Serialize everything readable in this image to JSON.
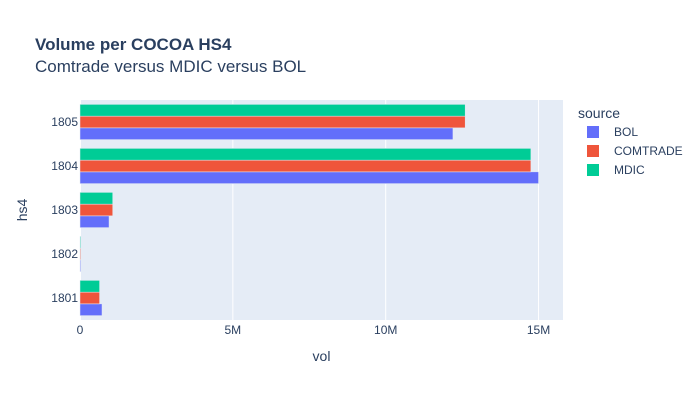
{
  "chart_data": {
    "type": "bar",
    "orientation": "horizontal",
    "barmode": "group",
    "title": "Volume per COCOA HS4",
    "subtitle": "Comtrade versus MDIC versus BOL",
    "xlabel": "vol",
    "ylabel": "hs4",
    "xlim": [
      0,
      15800000
    ],
    "xticks": [
      0,
      5000000,
      10000000,
      15000000
    ],
    "xtick_labels": [
      "0",
      "5M",
      "10M",
      "15M"
    ],
    "categories": [
      "1801",
      "1802",
      "1803",
      "1804",
      "1805"
    ],
    "legend_title": "source",
    "legend_position": "right",
    "grid": true,
    "series": [
      {
        "name": "BOL",
        "color": "#636efa",
        "values": [
          720000,
          12000,
          950000,
          15000000,
          12200000
        ]
      },
      {
        "name": "COMTRADE",
        "color": "#ef553b",
        "values": [
          640000,
          10000,
          1070000,
          14750000,
          12600000
        ]
      },
      {
        "name": "MDIC",
        "color": "#00cc96",
        "values": [
          640000,
          10000,
          1070000,
          14750000,
          12600000
        ]
      }
    ]
  }
}
